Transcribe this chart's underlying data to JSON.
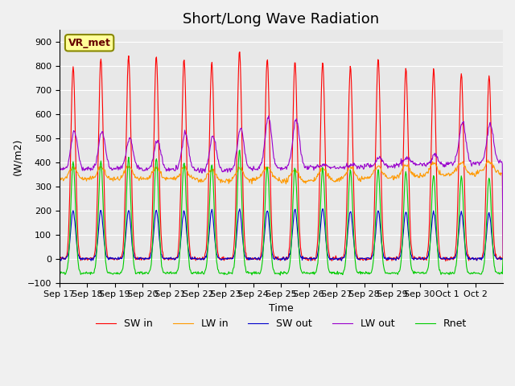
{
  "title": "Short/Long Wave Radiation",
  "xlabel": "Time",
  "ylabel": "(W/m2)",
  "ylim": [
    -100,
    950
  ],
  "yticks": [
    -100,
    0,
    100,
    200,
    300,
    400,
    500,
    600,
    700,
    800,
    900
  ],
  "station_label": "VR_met",
  "x_tick_labels": [
    "Sep 17",
    "Sep 18",
    "Sep 19",
    "Sep 20",
    "Sep 21",
    "Sep 22",
    "Sep 23",
    "Sep 24",
    "Sep 25",
    "Sep 26",
    "Sep 27",
    "Sep 28",
    "Sep 29",
    "Sep 30",
    "Oct 1",
    "Oct 2"
  ],
  "legend_entries": [
    "SW in",
    "LW in",
    "SW out",
    "LW out",
    "Rnet"
  ],
  "legend_colors": [
    "#ff0000",
    "#ff9900",
    "#0000cc",
    "#9900cc",
    "#00cc00"
  ],
  "bg_color": "#e8e8e8",
  "title_fontsize": 13,
  "n_days": 16,
  "pts_per_day": 48,
  "sw_in_peak": [
    800,
    830,
    840,
    840,
    830,
    820,
    860,
    830,
    820,
    820,
    800,
    830,
    790,
    790,
    770,
    760
  ],
  "lw_in_base": [
    330,
    330,
    330,
    330,
    330,
    320,
    325,
    330,
    320,
    325,
    330,
    335,
    340,
    345,
    350,
    355
  ],
  "lw_in_day_bump": [
    50,
    50,
    50,
    50,
    50,
    50,
    50,
    50,
    50,
    50,
    50,
    50,
    50,
    50,
    50,
    50
  ],
  "lw_out_base": [
    370,
    375,
    375,
    370,
    370,
    365,
    370,
    375,
    375,
    380,
    380,
    385,
    390,
    390,
    395,
    400
  ],
  "lw_out_day_peak": [
    530,
    530,
    500,
    490,
    520,
    510,
    540,
    590,
    580,
    390,
    390,
    420,
    420,
    430,
    570,
    560
  ],
  "sw_out_peak": [
    200,
    200,
    200,
    200,
    200,
    200,
    205,
    200,
    205,
    205,
    200,
    200,
    195,
    195,
    195,
    190
  ],
  "rnet_night": [
    -60,
    -60,
    -60,
    -60,
    -60,
    -60,
    -60,
    -60,
    -60,
    -60,
    -60,
    -60,
    -60,
    -60,
    -60,
    -60
  ],
  "rnet_day_peak": [
    400,
    405,
    415,
    415,
    400,
    395,
    450,
    380,
    375,
    375,
    370,
    370,
    360,
    345,
    340,
    340
  ]
}
